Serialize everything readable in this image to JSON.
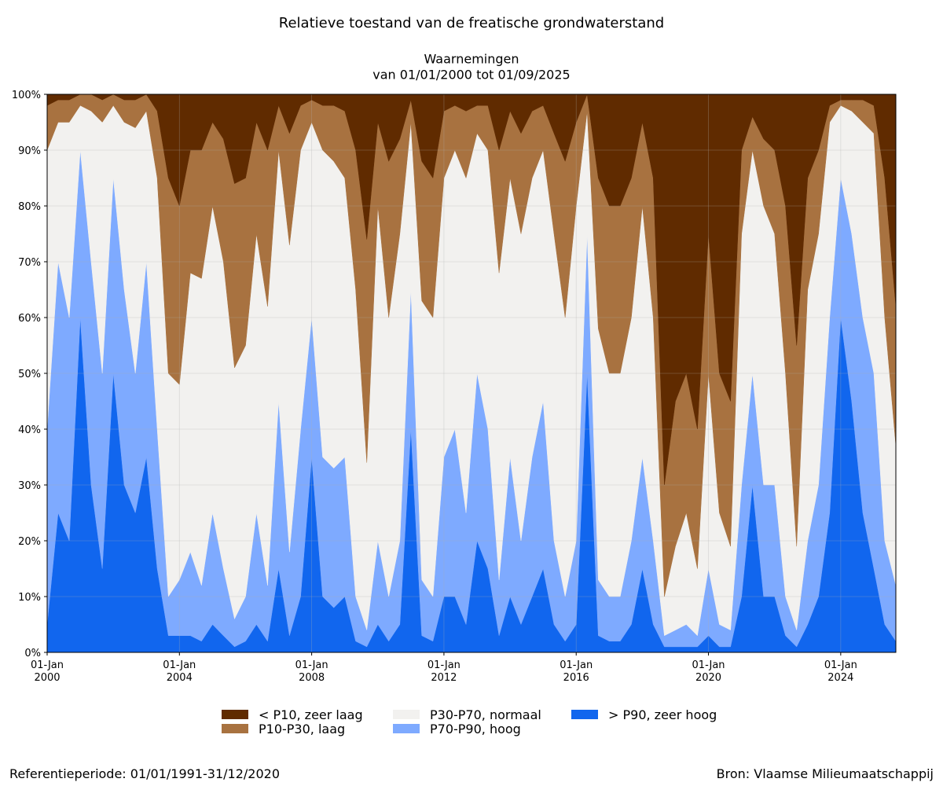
{
  "chart_data": {
    "type": "stacked_area",
    "title": "Relatieve toestand van de freatische grondwaterstand",
    "subtitle": "Waarnemingen\nvan 01/01/2000 tot 01/09/2025",
    "footer_left": "Referentieperiode: 01/01/1991-31/12/2020",
    "footer_right": "Bron: Vlaamse Milieumaatschappij",
    "x": [
      "2000-01-01",
      "2000-05-01",
      "2000-09-01",
      "2001-01-01",
      "2001-05-01",
      "2001-09-01",
      "2002-01-01",
      "2002-05-01",
      "2002-09-01",
      "2003-01-01",
      "2003-05-01",
      "2003-09-01",
      "2004-01-01",
      "2004-05-01",
      "2004-09-01",
      "2005-01-01",
      "2005-05-01",
      "2005-09-01",
      "2006-01-01",
      "2006-05-01",
      "2006-09-01",
      "2007-01-01",
      "2007-05-01",
      "2007-09-01",
      "2008-01-01",
      "2008-05-01",
      "2008-09-01",
      "2009-01-01",
      "2009-05-01",
      "2009-09-01",
      "2010-01-01",
      "2010-05-01",
      "2010-09-01",
      "2011-01-01",
      "2011-05-01",
      "2011-09-01",
      "2012-01-01",
      "2012-05-01",
      "2012-09-01",
      "2013-01-01",
      "2013-05-01",
      "2013-09-01",
      "2014-01-01",
      "2014-05-01",
      "2014-09-01",
      "2015-01-01",
      "2015-05-01",
      "2015-09-01",
      "2016-01-01",
      "2016-05-01",
      "2016-09-01",
      "2017-01-01",
      "2017-05-01",
      "2017-09-01",
      "2018-01-01",
      "2018-05-01",
      "2018-09-01",
      "2019-01-01",
      "2019-05-01",
      "2019-09-01",
      "2020-01-01",
      "2020-05-01",
      "2020-09-01",
      "2021-01-01",
      "2021-05-01",
      "2021-09-01",
      "2022-01-01",
      "2022-05-01",
      "2022-09-01",
      "2023-01-01",
      "2023-05-01",
      "2023-09-01",
      "2024-01-01",
      "2024-05-01",
      "2024-09-01",
      "2025-01-01",
      "2025-05-01",
      "2025-09-01"
    ],
    "xlim": [
      "2000-01-01",
      "2025-09-01"
    ],
    "xticks": [
      {
        "value": "2000-01-01",
        "label": "01-Jan\n2000"
      },
      {
        "value": "2004-01-01",
        "label": "01-Jan\n2004"
      },
      {
        "value": "2008-01-01",
        "label": "01-Jan\n2008"
      },
      {
        "value": "2012-01-01",
        "label": "01-Jan\n2012"
      },
      {
        "value": "2016-01-01",
        "label": "01-Jan\n2016"
      },
      {
        "value": "2020-01-01",
        "label": "01-Jan\n2020"
      },
      {
        "value": "2024-01-01",
        "label": "01-Jan\n2024"
      }
    ],
    "ylim": [
      0,
      100
    ],
    "yticks": [
      {
        "value": 0,
        "label": "0%"
      },
      {
        "value": 10,
        "label": "10%"
      },
      {
        "value": 20,
        "label": "20%"
      },
      {
        "value": 30,
        "label": "30%"
      },
      {
        "value": 40,
        "label": "40%"
      },
      {
        "value": 50,
        "label": "50%"
      },
      {
        "value": 60,
        "label": "60%"
      },
      {
        "value": 70,
        "label": "70%"
      },
      {
        "value": 80,
        "label": "80%"
      },
      {
        "value": 90,
        "label": "90%"
      },
      {
        "value": 100,
        "label": "100%"
      }
    ],
    "grid": true,
    "series": [
      {
        "name": "< P10, zeer laag",
        "color": "#602b00",
        "values": [
          2,
          1,
          1,
          0,
          0,
          1,
          0,
          1,
          1,
          0,
          3,
          15,
          20,
          10,
          10,
          5,
          8,
          16,
          15,
          5,
          10,
          2,
          7,
          2,
          1,
          2,
          2,
          3,
          10,
          26,
          5,
          12,
          8,
          1,
          12,
          15,
          3,
          2,
          3,
          2,
          2,
          10,
          3,
          7,
          3,
          2,
          7,
          12,
          5,
          0,
          15,
          20,
          20,
          15,
          5,
          15,
          70,
          55,
          50,
          60,
          25,
          50,
          55,
          10,
          4,
          8,
          10,
          20,
          45,
          15,
          10,
          2,
          1,
          1,
          1,
          2,
          15,
          38
        ]
      },
      {
        "name": "P10-P30, laag",
        "color": "#a87240",
        "values": [
          8,
          4,
          4,
          2,
          3,
          4,
          2,
          4,
          5,
          3,
          12,
          35,
          32,
          22,
          23,
          15,
          22,
          33,
          30,
          20,
          28,
          8,
          20,
          8,
          4,
          8,
          10,
          12,
          25,
          40,
          15,
          28,
          17,
          4,
          25,
          25,
          12,
          8,
          12,
          5,
          8,
          22,
          12,
          18,
          12,
          8,
          18,
          28,
          15,
          3,
          27,
          30,
          30,
          25,
          15,
          25,
          20,
          26,
          25,
          25,
          25,
          25,
          26,
          15,
          6,
          12,
          15,
          30,
          36,
          20,
          15,
          3,
          1,
          2,
          4,
          5,
          25,
          25
        ]
      },
      {
        "name": "P30-P70, normaal",
        "color": "#f2f1ef",
        "values": [
          50,
          25,
          35,
          8,
          27,
          45,
          13,
          30,
          44,
          27,
          45,
          40,
          35,
          50,
          55,
          55,
          55,
          45,
          45,
          50,
          50,
          45,
          55,
          50,
          35,
          55,
          55,
          50,
          55,
          30,
          60,
          50,
          55,
          30,
          50,
          50,
          50,
          50,
          60,
          43,
          50,
          55,
          50,
          55,
          50,
          45,
          55,
          50,
          60,
          22,
          45,
          40,
          40,
          40,
          45,
          40,
          7,
          15,
          20,
          12,
          35,
          20,
          15,
          45,
          40,
          50,
          45,
          40,
          15,
          45,
          45,
          35,
          13,
          22,
          35,
          43,
          40,
          25
        ]
      },
      {
        "name": "P70-P90, hoog",
        "color": "#7eaaff",
        "values": [
          35,
          45,
          40,
          30,
          40,
          35,
          35,
          35,
          25,
          35,
          25,
          7,
          10,
          15,
          10,
          20,
          12,
          5,
          8,
          20,
          10,
          30,
          15,
          30,
          25,
          25,
          25,
          25,
          8,
          3,
          15,
          8,
          15,
          25,
          10,
          8,
          25,
          30,
          20,
          30,
          25,
          10,
          25,
          15,
          25,
          30,
          15,
          8,
          15,
          25,
          10,
          8,
          8,
          15,
          20,
          15,
          2,
          3,
          4,
          2,
          12,
          4,
          3,
          20,
          20,
          20,
          20,
          7,
          3,
          15,
          20,
          35,
          25,
          30,
          35,
          35,
          15,
          10
        ]
      },
      {
        "name": "> P90, zeer hoog",
        "color": "#1166ee",
        "values": [
          5,
          25,
          20,
          60,
          30,
          15,
          50,
          30,
          25,
          35,
          15,
          3,
          3,
          3,
          2,
          5,
          3,
          1,
          2,
          5,
          2,
          15,
          3,
          10,
          35,
          10,
          8,
          10,
          2,
          1,
          5,
          2,
          5,
          40,
          3,
          2,
          10,
          10,
          5,
          20,
          15,
          3,
          10,
          5,
          10,
          15,
          5,
          2,
          5,
          50,
          3,
          2,
          2,
          5,
          15,
          5,
          1,
          1,
          1,
          1,
          3,
          1,
          1,
          10,
          30,
          10,
          10,
          3,
          1,
          5,
          10,
          25,
          60,
          45,
          25,
          15,
          5,
          2
        ]
      }
    ]
  }
}
